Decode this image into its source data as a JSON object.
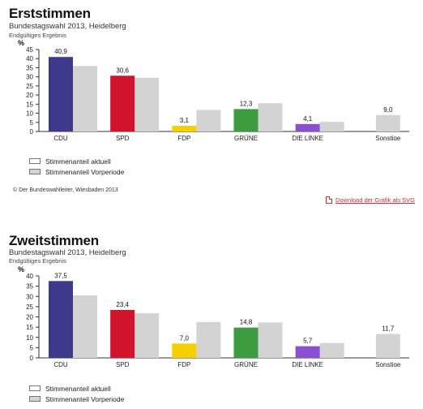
{
  "legend": {
    "current": "Stimmenanteil aktuell",
    "previous": "Stimmenanteil Vorperiode"
  },
  "copyright": "© Der Bundeswahlleiter, Wiesbaden 2013",
  "download_label": "Download der Grafik als SVG",
  "colors": {
    "CDU": "#3d3a8c",
    "SPD": "#d0142d",
    "FDP": "#f6cf00",
    "GRÜNE": "#3d9b40",
    "DIE LINKE": "#8b4fd1",
    "Sonstige": "#d3d3d3",
    "previous": "#d3d3d3"
  },
  "chart_data": [
    {
      "type": "bar",
      "title": "Erststimmen",
      "subtitle": "Bundestagswahl 2013, Heidelberg",
      "note": "Endgültiges Ergebnis",
      "ylabel": "%",
      "ylim": [
        0,
        45
      ],
      "yticks": [
        0,
        5,
        10,
        15,
        20,
        25,
        30,
        35,
        40,
        45
      ],
      "grid": false,
      "categories": [
        "CDU",
        "SPD",
        "FDP",
        "GRÜNE",
        "DIE LINKE",
        "Sonstige"
      ],
      "series": [
        {
          "name": "Stimmenanteil aktuell",
          "values": [
            40.9,
            30.6,
            3.1,
            12.3,
            4.1,
            null
          ],
          "labels": [
            "40,9",
            "30,6",
            "3,1",
            "12,3",
            "4,1",
            ""
          ]
        },
        {
          "name": "Stimmenanteil Vorperiode",
          "values": [
            36.0,
            29.5,
            11.8,
            15.5,
            5.3,
            9.0
          ],
          "labels": [
            "",
            "",
            "",
            "",
            "",
            "9,0"
          ]
        }
      ]
    },
    {
      "type": "bar",
      "title": "Zweitstimmen",
      "subtitle": "Bundestagswahl 2013, Heidelberg",
      "note": "Endgültiges Ergebnis",
      "ylabel": "%",
      "ylim": [
        0,
        40
      ],
      "yticks": [
        0,
        5,
        10,
        15,
        20,
        25,
        30,
        35,
        40
      ],
      "grid": false,
      "categories": [
        "CDU",
        "SPD",
        "FDP",
        "GRÜNE",
        "DIE LINKE",
        "Sonstige"
      ],
      "series": [
        {
          "name": "Stimmenanteil aktuell",
          "values": [
            37.5,
            23.4,
            7.0,
            14.8,
            5.7,
            null
          ],
          "labels": [
            "37,5",
            "23,4",
            "7,0",
            "14,8",
            "5,7",
            ""
          ]
        },
        {
          "name": "Stimmenanteil Vorperiode",
          "values": [
            30.5,
            21.8,
            17.5,
            17.3,
            7.2,
            11.7
          ],
          "labels": [
            "",
            "",
            "",
            "",
            "",
            "11,7"
          ]
        }
      ]
    }
  ]
}
